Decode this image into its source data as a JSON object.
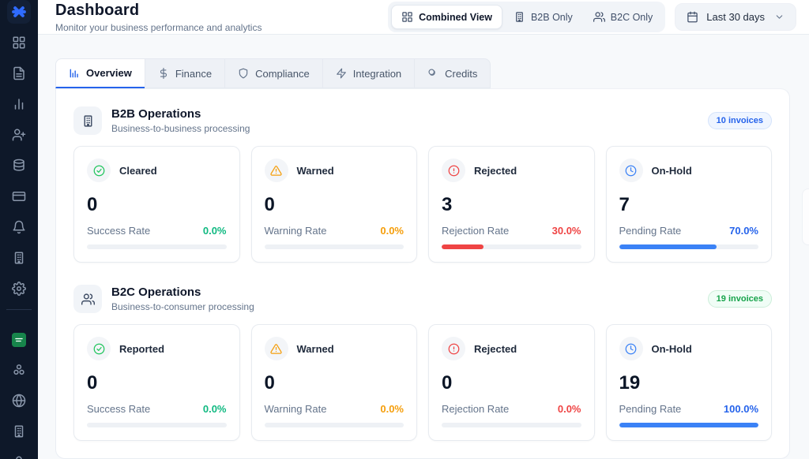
{
  "app": {
    "logo_icon": "asterisk-logo-icon",
    "colors": {
      "accent": "#2563eb",
      "success": "#10b981",
      "warning": "#f59e0b",
      "danger": "#ef4444",
      "info": "#3b82f6",
      "sidebar_bg": "#0e1829"
    }
  },
  "sidebar": {
    "items": [
      "grid-icon",
      "document-icon",
      "bar-chart-icon",
      "user-plus-icon",
      "database-icon",
      "credit-card-icon",
      "bell-icon",
      "building-icon",
      "gear-icon"
    ],
    "bottom_items": [
      "saudi-flag-icon",
      "cluster-icon",
      "globe-icon",
      "building-icon",
      "user-icon"
    ]
  },
  "header": {
    "title": "Dashboard",
    "subtitle": "Monitor your business performance and analytics",
    "view_toggle": [
      {
        "label": "Combined View",
        "icon": "grid-icon",
        "active": true
      },
      {
        "label": "B2B Only",
        "icon": "building-icon",
        "active": false
      },
      {
        "label": "B2C Only",
        "icon": "users-icon",
        "active": false
      }
    ],
    "date_filter": {
      "label": "Last 30 days",
      "icon": "calendar-icon"
    }
  },
  "tabs": [
    {
      "label": "Overview",
      "icon": "bar-chart-icon",
      "active": true
    },
    {
      "label": "Finance",
      "icon": "dollar-icon",
      "active": false
    },
    {
      "label": "Compliance",
      "icon": "shield-icon",
      "active": false
    },
    {
      "label": "Integration",
      "icon": "zap-icon",
      "active": false
    },
    {
      "label": "Credits",
      "icon": "coins-icon",
      "active": false
    }
  ],
  "sections": [
    {
      "title": "B2B Operations",
      "subtitle": "Business-to-business processing",
      "icon": "building-icon",
      "badge": {
        "label": "10 invoices",
        "color": "blue"
      },
      "cards": [
        {
          "label": "Cleared",
          "icon": "check-circle-icon",
          "value": "0",
          "rate_label": "Success Rate",
          "rate_value": "0.0%",
          "progress": 0,
          "color": "green"
        },
        {
          "label": "Warned",
          "icon": "alert-triangle-icon",
          "value": "0",
          "rate_label": "Warning Rate",
          "rate_value": "0.0%",
          "progress": 0,
          "color": "amber"
        },
        {
          "label": "Rejected",
          "icon": "alert-circle-icon",
          "value": "3",
          "rate_label": "Rejection Rate",
          "rate_value": "30.0%",
          "progress": 30,
          "color": "red"
        },
        {
          "label": "On-Hold",
          "icon": "clock-icon",
          "value": "7",
          "rate_label": "Pending Rate",
          "rate_value": "70.0%",
          "progress": 70,
          "color": "blue"
        }
      ]
    },
    {
      "title": "B2C Operations",
      "subtitle": "Business-to-consumer processing",
      "icon": "users-icon",
      "badge": {
        "label": "19 invoices",
        "color": "green"
      },
      "cards": [
        {
          "label": "Reported",
          "icon": "check-circle-icon",
          "value": "0",
          "rate_label": "Success Rate",
          "rate_value": "0.0%",
          "progress": 0,
          "color": "green"
        },
        {
          "label": "Warned",
          "icon": "alert-triangle-icon",
          "value": "0",
          "rate_label": "Warning Rate",
          "rate_value": "0.0%",
          "progress": 0,
          "color": "amber"
        },
        {
          "label": "Rejected",
          "icon": "alert-circle-icon",
          "value": "0",
          "rate_label": "Rejection Rate",
          "rate_value": "0.0%",
          "progress": 0,
          "color": "red"
        },
        {
          "label": "On-Hold",
          "icon": "clock-icon",
          "value": "19",
          "rate_label": "Pending Rate",
          "rate_value": "100.0%",
          "progress": 100,
          "color": "blue"
        }
      ]
    }
  ]
}
